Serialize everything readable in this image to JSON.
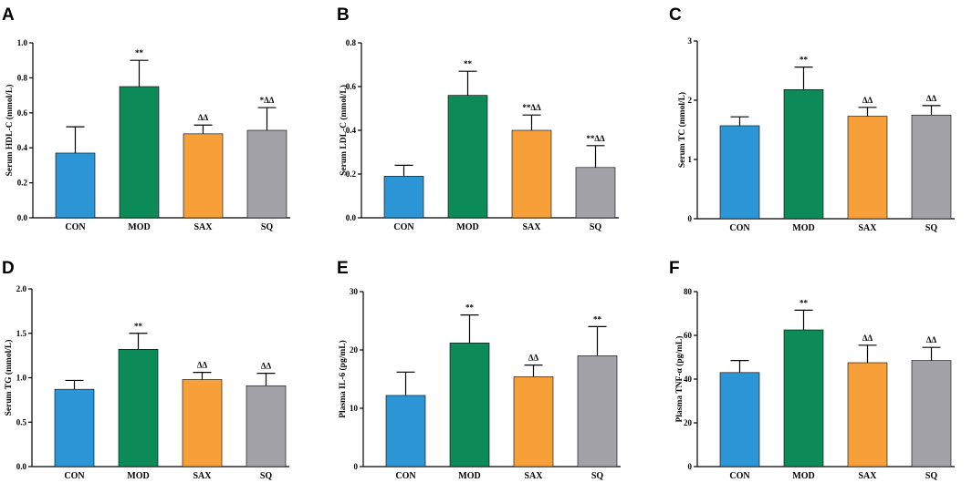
{
  "figure": {
    "categories": [
      "CON",
      "MOD",
      "SAX",
      "SQ"
    ]
  },
  "chart_data": [
    {
      "panel": "A",
      "type": "bar",
      "ylabel": "Serum HDL-C (mmol/L)",
      "categories": [
        "CON",
        "MOD",
        "SAX",
        "SQ"
      ],
      "values": [
        0.37,
        0.75,
        0.48,
        0.5
      ],
      "errors": [
        0.15,
        0.15,
        0.05,
        0.13
      ],
      "annotations": [
        "",
        "**",
        "ΔΔ",
        "*ΔΔ"
      ],
      "ylim": [
        0,
        1.0
      ],
      "yticks": [
        "0.0",
        "0.2",
        "0.4",
        "0.6",
        "0.8",
        "1.0"
      ],
      "colors": [
        "#2b95d6",
        "#0c8a57",
        "#f7a03a",
        "#a3a2a8"
      ]
    },
    {
      "panel": "B",
      "type": "bar",
      "ylabel": "Serum LDL-C (mmol/L)",
      "categories": [
        "CON",
        "MOD",
        "SAX",
        "SQ"
      ],
      "values": [
        0.19,
        0.56,
        0.4,
        0.23
      ],
      "errors": [
        0.05,
        0.11,
        0.07,
        0.1
      ],
      "annotations": [
        "",
        "**",
        "**ΔΔ",
        "**ΔΔ"
      ],
      "ylim": [
        0,
        0.8
      ],
      "yticks": [
        "0.0",
        "0.2",
        "0.4",
        "0.6",
        "0.8"
      ],
      "colors": [
        "#2b95d6",
        "#0c8a57",
        "#f7a03a",
        "#a3a2a8"
      ]
    },
    {
      "panel": "C",
      "type": "bar",
      "ylabel": "Serum TC (mmol/L)",
      "categories": [
        "CON",
        "MOD",
        "SAX",
        "SQ"
      ],
      "values": [
        1.57,
        2.18,
        1.73,
        1.75
      ],
      "errors": [
        0.15,
        0.38,
        0.15,
        0.16
      ],
      "annotations": [
        "",
        "**",
        "ΔΔ",
        "ΔΔ"
      ],
      "ylim": [
        0,
        3
      ],
      "yticks": [
        "0",
        "1",
        "2",
        "3"
      ],
      "colors": [
        "#2b95d6",
        "#0c8a57",
        "#f7a03a",
        "#a3a2a8"
      ]
    },
    {
      "panel": "D",
      "type": "bar",
      "ylabel": "Serum TG (mmol/L)",
      "categories": [
        "CON",
        "MOD",
        "SAX",
        "SQ"
      ],
      "values": [
        0.87,
        1.32,
        0.98,
        0.91
      ],
      "errors": [
        0.1,
        0.18,
        0.08,
        0.14
      ],
      "annotations": [
        "",
        "**",
        "ΔΔ",
        "ΔΔ"
      ],
      "ylim": [
        0,
        2.0
      ],
      "yticks": [
        "0.0",
        "0.5",
        "1.0",
        "1.5",
        "2.0"
      ],
      "colors": [
        "#2b95d6",
        "#0c8a57",
        "#f7a03a",
        "#a3a2a8"
      ]
    },
    {
      "panel": "E",
      "type": "bar",
      "ylabel": "Plasma IL-6 (pg/mL)",
      "categories": [
        "CON",
        "MOD",
        "SAX",
        "SQ"
      ],
      "values": [
        12.2,
        21.2,
        15.4,
        19.0
      ],
      "errors": [
        4.0,
        4.8,
        2.0,
        5.0
      ],
      "annotations": [
        "",
        "**",
        "ΔΔ",
        "**"
      ],
      "ylim": [
        0,
        30
      ],
      "yticks": [
        "0",
        "10",
        "20",
        "30"
      ],
      "colors": [
        "#2b95d6",
        "#0c8a57",
        "#f7a03a",
        "#a3a2a8"
      ]
    },
    {
      "panel": "F",
      "type": "bar",
      "ylabel": "Plasma TNF-α (pg/mL)",
      "categories": [
        "CON",
        "MOD",
        "SAX",
        "SQ"
      ],
      "values": [
        43.0,
        62.5,
        47.5,
        48.5
      ],
      "errors": [
        5.5,
        9.0,
        8.0,
        6.0
      ],
      "annotations": [
        "",
        "**",
        "ΔΔ",
        "ΔΔ"
      ],
      "ylim": [
        0,
        80
      ],
      "yticks": [
        "0",
        "20",
        "40",
        "60",
        "80"
      ],
      "colors": [
        "#2b95d6",
        "#0c8a57",
        "#f7a03a",
        "#a3a2a8"
      ]
    }
  ]
}
